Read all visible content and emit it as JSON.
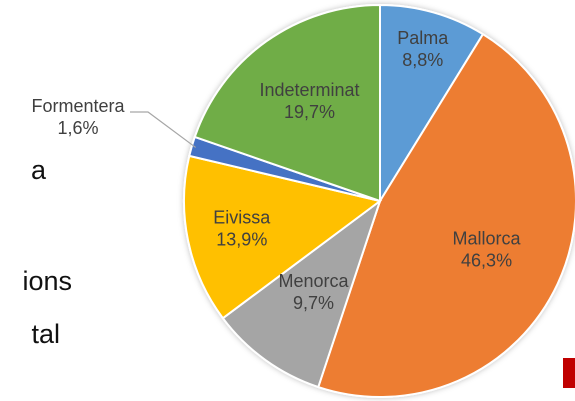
{
  "slide_text": [
    "a",
    "ions",
    "tal"
  ],
  "chart_data": {
    "type": "pie",
    "categories": [
      "Palma",
      "Mallorca",
      "Menorca",
      "Eivissa",
      "Formentera",
      "Indeterminat"
    ],
    "values": [
      8.8,
      46.3,
      9.7,
      13.9,
      1.6,
      19.7
    ],
    "value_labels": [
      "8,8%",
      "46,3%",
      "9,7%",
      "13,9%",
      "1,6%",
      "19,7%"
    ],
    "colors": [
      "#5b9bd5",
      "#ed7d31",
      "#a5a5a5",
      "#ffc000",
      "#4472c4",
      "#70ad47"
    ]
  }
}
